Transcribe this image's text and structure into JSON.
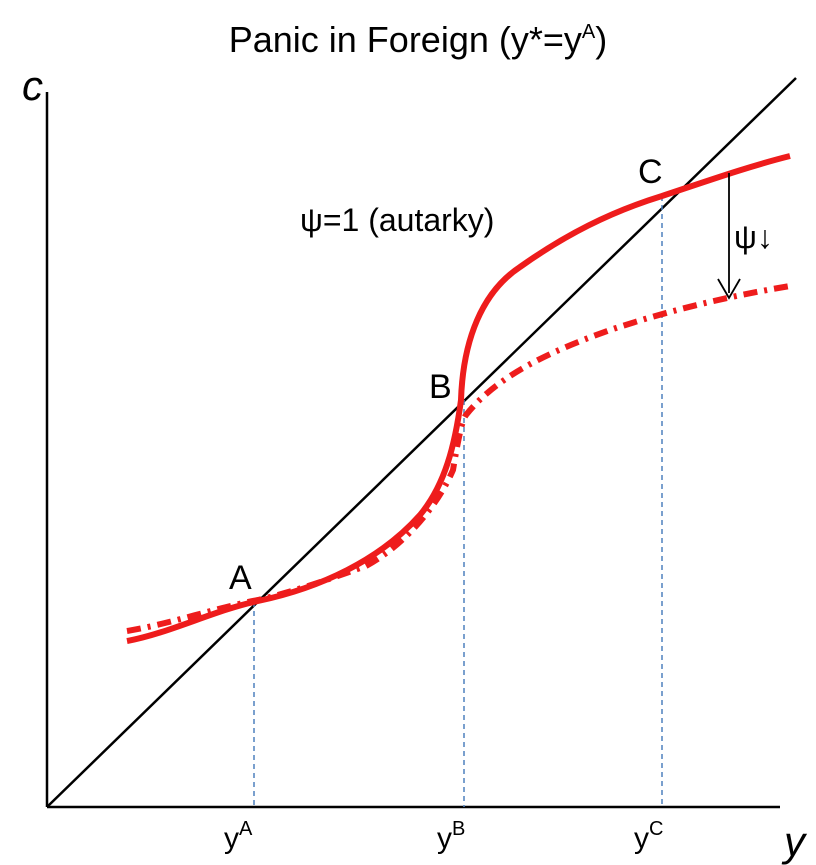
{
  "title": {
    "main": "Panic in Foreign (y*=y",
    "sup": "A",
    "close": ")"
  },
  "axes": {
    "y_axis_label": "c",
    "x_axis_label": "y"
  },
  "points": {
    "a": "A",
    "b": "B",
    "c": "C"
  },
  "ticks": [
    {
      "base": "y",
      "sup": "A"
    },
    {
      "base": "y",
      "sup": "B"
    },
    {
      "base": "y",
      "sup": "C"
    }
  ],
  "annotations": {
    "autarky": "ψ=1 (autarky)",
    "psi_down": "ψ↓"
  },
  "colors": {
    "curve": "#ee1c1c",
    "guide": "#4f81bd",
    "axis": "#000000"
  }
}
